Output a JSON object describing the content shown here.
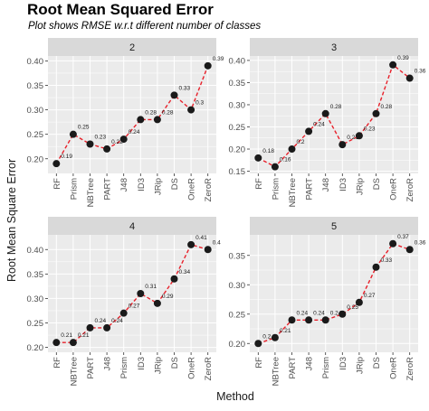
{
  "chart_data": {
    "type": "line",
    "title": "Root Mean Squared Error",
    "subtitle": "Plot shows RMSE w.r.t different number of classes",
    "xlabel": "Method",
    "ylabel": "Root Mean Square Error",
    "point_color": "#1a1a1a",
    "line_color": "#e8202a",
    "panel_bg": "#ebebeb",
    "strip_bg": "#d9d9d9",
    "grid_color": "#ffffff",
    "grid": true,
    "panels": [
      {
        "strip": "2",
        "categories": [
          "RF",
          "Prism",
          "NBTree",
          "PART",
          "J48",
          "ID3",
          "JRip",
          "DS",
          "OneR",
          "ZeroR"
        ],
        "values": [
          0.19,
          0.25,
          0.23,
          0.22,
          0.24,
          0.28,
          0.28,
          0.33,
          0.3,
          0.39
        ],
        "labels": [
          "0.19",
          "0.25",
          "0.23",
          "0.22",
          "0.24",
          "0.28",
          "0.28",
          "0.33",
          "0.3",
          "0.39"
        ],
        "ylim": [
          0.17,
          0.41
        ],
        "yticks": [
          0.2,
          0.25,
          0.3,
          0.35,
          0.4
        ],
        "ytick_labels": [
          "0.20",
          "0.25",
          "0.30",
          "0.35",
          "0.40"
        ]
      },
      {
        "strip": "3",
        "categories": [
          "RF",
          "Prism",
          "NBTree",
          "PART",
          "J48",
          "ID3",
          "JRip",
          "DS",
          "OneR",
          "ZeroR"
        ],
        "values": [
          0.18,
          0.16,
          0.2,
          0.24,
          0.28,
          0.21,
          0.23,
          0.28,
          0.39,
          0.36
        ],
        "labels": [
          "0.18",
          "0.16",
          "0.2",
          "0.24",
          "0.28",
          "0.21",
          "0.23",
          "0.28",
          "0.39",
          "0.36"
        ],
        "ylim": [
          0.145,
          0.41
        ],
        "yticks": [
          0.15,
          0.2,
          0.25,
          0.3,
          0.35,
          0.4
        ],
        "ytick_labels": [
          "0.15",
          "0.20",
          "0.25",
          "0.30",
          "0.35",
          "0.40"
        ]
      },
      {
        "strip": "4",
        "categories": [
          "RF",
          "NBTree",
          "PART",
          "J48",
          "Prism",
          "ID3",
          "JRip",
          "DS",
          "OneR",
          "ZeroR"
        ],
        "values": [
          0.21,
          0.21,
          0.24,
          0.24,
          0.27,
          0.31,
          0.29,
          0.34,
          0.41,
          0.4
        ],
        "labels": [
          "0.21",
          "0.21",
          "0.24",
          "0.24",
          "0.27",
          "0.31",
          "0.29",
          "0.34",
          "0.41",
          "0.4"
        ],
        "ylim": [
          0.19,
          0.43
        ],
        "yticks": [
          0.2,
          0.25,
          0.3,
          0.35,
          0.4
        ],
        "ytick_labels": [
          "0.20",
          "0.25",
          "0.30",
          "0.35",
          "0.40"
        ]
      },
      {
        "strip": "5",
        "categories": [
          "RF",
          "NBTree",
          "PART",
          "J48",
          "Prism",
          "ID3",
          "JRip",
          "DS",
          "OneR",
          "ZeroR"
        ],
        "values": [
          0.2,
          0.21,
          0.24,
          0.24,
          0.24,
          0.25,
          0.27,
          0.33,
          0.37,
          0.36
        ],
        "labels": [
          "0.2",
          "0.21",
          "0.24",
          "0.24",
          "0.24",
          "0.25",
          "0.27",
          "0.33",
          "0.37",
          "0.36"
        ],
        "ylim": [
          0.185,
          0.385
        ],
        "yticks": [
          0.2,
          0.25,
          0.3,
          0.35
        ],
        "ytick_labels": [
          "0.20",
          "0.25",
          "0.30",
          "0.35"
        ]
      }
    ]
  }
}
